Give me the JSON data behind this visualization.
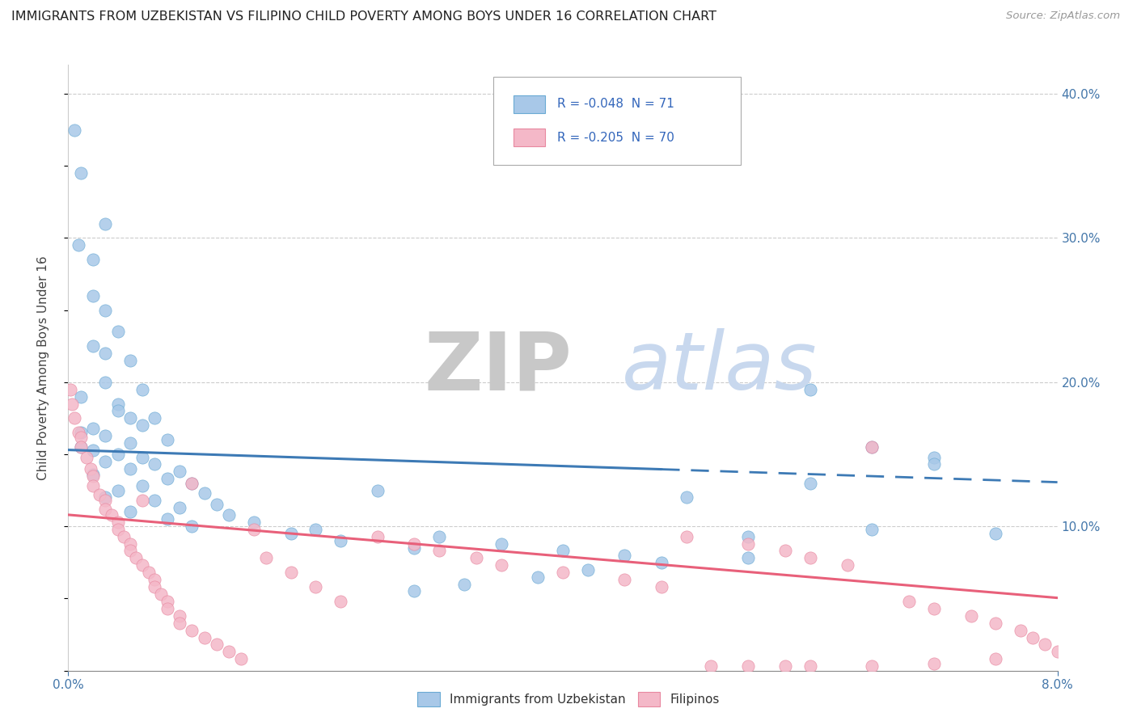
{
  "title": "IMMIGRANTS FROM UZBEKISTAN VS FILIPINO CHILD POVERTY AMONG BOYS UNDER 16 CORRELATION CHART",
  "source": "Source: ZipAtlas.com",
  "ylabel": "Child Poverty Among Boys Under 16",
  "r_uzbek": -0.048,
  "n_uzbek": 71,
  "r_filipino": -0.205,
  "n_filipino": 70,
  "blue_color": "#a8c8e8",
  "blue_edge_color": "#6aaad4",
  "blue_line_color": "#3d7ab5",
  "pink_color": "#f4b8c8",
  "pink_edge_color": "#e888a0",
  "pink_line_color": "#e8607a",
  "watermark_zip_color": "#c8c8c8",
  "watermark_atlas_color": "#c8d8ee",
  "bg_color": "#ffffff",
  "grid_color": "#cccccc",
  "xlim": [
    0.0,
    0.08
  ],
  "ylim": [
    0.0,
    0.42
  ],
  "blue_intercept": 0.153,
  "blue_slope": -0.28,
  "pink_intercept": 0.108,
  "pink_slope": -0.72,
  "uzbek_scatter": [
    [
      0.0005,
      0.375
    ],
    [
      0.001,
      0.345
    ],
    [
      0.003,
      0.31
    ],
    [
      0.0008,
      0.295
    ],
    [
      0.002,
      0.285
    ],
    [
      0.002,
      0.26
    ],
    [
      0.003,
      0.25
    ],
    [
      0.004,
      0.235
    ],
    [
      0.002,
      0.225
    ],
    [
      0.003,
      0.22
    ],
    [
      0.005,
      0.215
    ],
    [
      0.003,
      0.2
    ],
    [
      0.006,
      0.195
    ],
    [
      0.001,
      0.19
    ],
    [
      0.004,
      0.185
    ],
    [
      0.004,
      0.18
    ],
    [
      0.005,
      0.175
    ],
    [
      0.007,
      0.175
    ],
    [
      0.006,
      0.17
    ],
    [
      0.002,
      0.168
    ],
    [
      0.001,
      0.165
    ],
    [
      0.003,
      0.163
    ],
    [
      0.008,
      0.16
    ],
    [
      0.005,
      0.158
    ],
    [
      0.001,
      0.155
    ],
    [
      0.002,
      0.153
    ],
    [
      0.004,
      0.15
    ],
    [
      0.006,
      0.148
    ],
    [
      0.003,
      0.145
    ],
    [
      0.007,
      0.143
    ],
    [
      0.005,
      0.14
    ],
    [
      0.009,
      0.138
    ],
    [
      0.002,
      0.136
    ],
    [
      0.008,
      0.133
    ],
    [
      0.01,
      0.13
    ],
    [
      0.006,
      0.128
    ],
    [
      0.004,
      0.125
    ],
    [
      0.011,
      0.123
    ],
    [
      0.003,
      0.12
    ],
    [
      0.007,
      0.118
    ],
    [
      0.012,
      0.115
    ],
    [
      0.009,
      0.113
    ],
    [
      0.005,
      0.11
    ],
    [
      0.013,
      0.108
    ],
    [
      0.008,
      0.105
    ],
    [
      0.015,
      0.103
    ],
    [
      0.01,
      0.1
    ],
    [
      0.02,
      0.098
    ],
    [
      0.025,
      0.125
    ],
    [
      0.018,
      0.095
    ],
    [
      0.03,
      0.093
    ],
    [
      0.022,
      0.09
    ],
    [
      0.035,
      0.088
    ],
    [
      0.028,
      0.085
    ],
    [
      0.04,
      0.083
    ],
    [
      0.05,
      0.12
    ],
    [
      0.045,
      0.08
    ],
    [
      0.055,
      0.078
    ],
    [
      0.06,
      0.195
    ],
    [
      0.065,
      0.155
    ],
    [
      0.07,
      0.148
    ],
    [
      0.07,
      0.143
    ],
    [
      0.075,
      0.095
    ],
    [
      0.06,
      0.13
    ],
    [
      0.065,
      0.098
    ],
    [
      0.055,
      0.093
    ],
    [
      0.048,
      0.075
    ],
    [
      0.042,
      0.07
    ],
    [
      0.038,
      0.065
    ],
    [
      0.032,
      0.06
    ],
    [
      0.028,
      0.055
    ]
  ],
  "filipino_scatter": [
    [
      0.0002,
      0.195
    ],
    [
      0.0003,
      0.185
    ],
    [
      0.0005,
      0.175
    ],
    [
      0.0008,
      0.165
    ],
    [
      0.001,
      0.162
    ],
    [
      0.001,
      0.155
    ],
    [
      0.0015,
      0.148
    ],
    [
      0.0018,
      0.14
    ],
    [
      0.002,
      0.135
    ],
    [
      0.002,
      0.128
    ],
    [
      0.0025,
      0.122
    ],
    [
      0.003,
      0.118
    ],
    [
      0.003,
      0.112
    ],
    [
      0.0035,
      0.108
    ],
    [
      0.004,
      0.103
    ],
    [
      0.004,
      0.098
    ],
    [
      0.0045,
      0.093
    ],
    [
      0.005,
      0.088
    ],
    [
      0.005,
      0.083
    ],
    [
      0.0055,
      0.078
    ],
    [
      0.006,
      0.118
    ],
    [
      0.006,
      0.073
    ],
    [
      0.0065,
      0.068
    ],
    [
      0.007,
      0.063
    ],
    [
      0.007,
      0.058
    ],
    [
      0.0075,
      0.053
    ],
    [
      0.008,
      0.048
    ],
    [
      0.008,
      0.043
    ],
    [
      0.009,
      0.038
    ],
    [
      0.009,
      0.033
    ],
    [
      0.01,
      0.13
    ],
    [
      0.01,
      0.028
    ],
    [
      0.011,
      0.023
    ],
    [
      0.012,
      0.018
    ],
    [
      0.013,
      0.013
    ],
    [
      0.014,
      0.008
    ],
    [
      0.015,
      0.098
    ],
    [
      0.016,
      0.078
    ],
    [
      0.018,
      0.068
    ],
    [
      0.02,
      0.058
    ],
    [
      0.022,
      0.048
    ],
    [
      0.025,
      0.093
    ],
    [
      0.028,
      0.088
    ],
    [
      0.03,
      0.083
    ],
    [
      0.033,
      0.078
    ],
    [
      0.035,
      0.073
    ],
    [
      0.04,
      0.068
    ],
    [
      0.045,
      0.063
    ],
    [
      0.048,
      0.058
    ],
    [
      0.05,
      0.093
    ],
    [
      0.055,
      0.088
    ],
    [
      0.058,
      0.083
    ],
    [
      0.06,
      0.078
    ],
    [
      0.063,
      0.073
    ],
    [
      0.065,
      0.155
    ],
    [
      0.068,
      0.048
    ],
    [
      0.07,
      0.043
    ],
    [
      0.073,
      0.038
    ],
    [
      0.075,
      0.033
    ],
    [
      0.077,
      0.028
    ],
    [
      0.078,
      0.023
    ],
    [
      0.079,
      0.018
    ],
    [
      0.08,
      0.013
    ],
    [
      0.075,
      0.008
    ],
    [
      0.07,
      0.005
    ],
    [
      0.065,
      0.003
    ],
    [
      0.06,
      0.003
    ],
    [
      0.058,
      0.003
    ],
    [
      0.055,
      0.003
    ],
    [
      0.052,
      0.003
    ]
  ]
}
